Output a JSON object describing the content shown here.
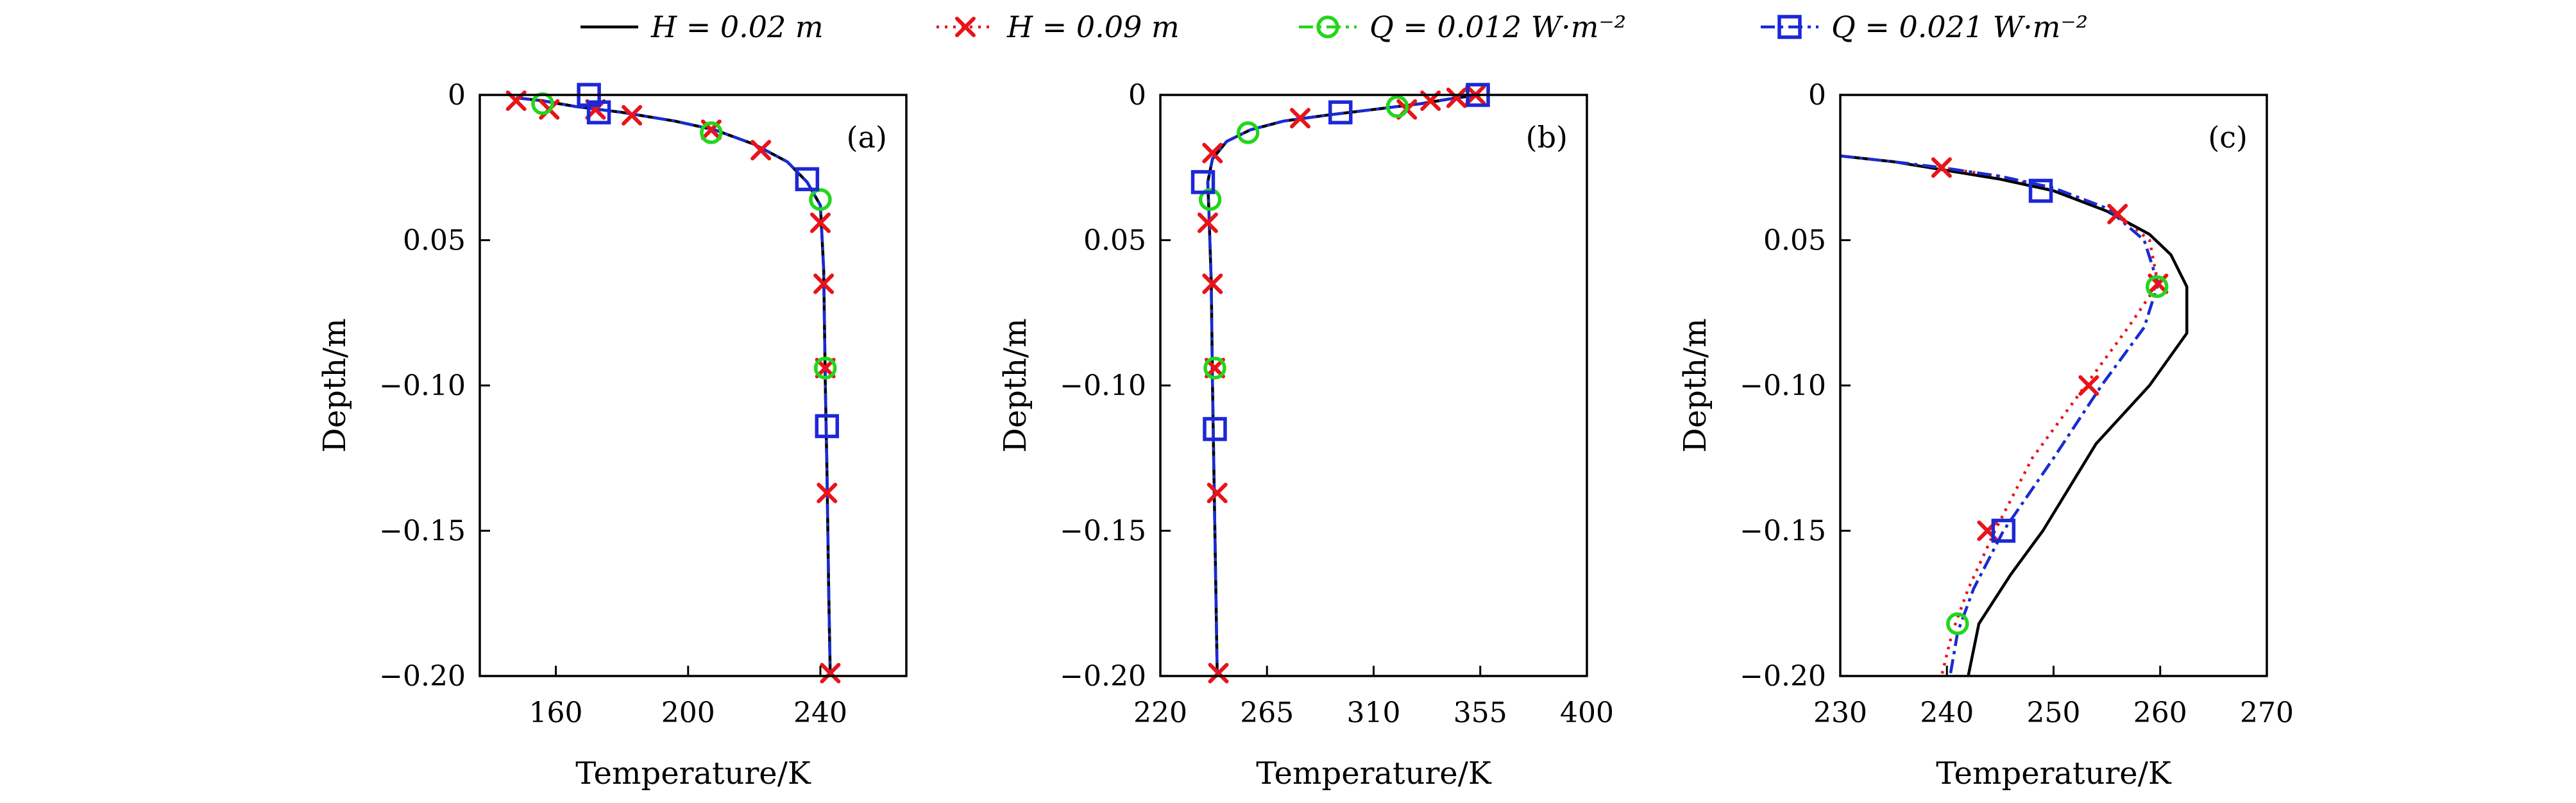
{
  "legend": [
    {
      "label": "H = 0.02 m",
      "color": "#000000",
      "dash": "solid",
      "marker": "none"
    },
    {
      "label": "H = 0.09 m",
      "color": "#e8141a",
      "dash": "dotted",
      "marker": "x"
    },
    {
      "label": "Q = 0.012 W·m⁻²",
      "color": "#22d61c",
      "dash": "dashdot",
      "marker": "circle"
    },
    {
      "label": "Q = 0.021 W·m⁻²",
      "color": "#1c28d6",
      "dash": "dashdot",
      "marker": "square"
    }
  ],
  "chart_data": [
    {
      "type": "line",
      "panel_label": "(a)",
      "xlabel": "Temperature/K",
      "ylabel": "Depth/m",
      "xlim": [
        137,
        266
      ],
      "ylim": [
        -0.2,
        0
      ],
      "xticks": [
        160,
        200,
        240
      ],
      "xtick_labels": [
        "160",
        "200",
        "240"
      ],
      "yticks": [
        0,
        -0.05,
        -0.1,
        -0.15,
        -0.2
      ],
      "ytick_labels": [
        "0",
        "0.05",
        "−0.10",
        "−0.15",
        "−0.20"
      ],
      "grid": false,
      "series": [
        {
          "name": "H = 0.02 m",
          "x": [
            148,
            156,
            166,
            180,
            196,
            208,
            220,
            230,
            236,
            240,
            241,
            241.5,
            242,
            242.5,
            243
          ],
          "y": [
            -0.001,
            -0.002,
            -0.004,
            -0.006,
            -0.009,
            -0.012,
            -0.017,
            -0.023,
            -0.03,
            -0.038,
            -0.06,
            -0.1,
            -0.13,
            -0.17,
            -0.2
          ]
        },
        {
          "name": "H = 0.09 m",
          "x": [
            148,
            156,
            166,
            180,
            196,
            208,
            220,
            230,
            236,
            240,
            241,
            241.5,
            242,
            242.5,
            243
          ],
          "y": [
            -0.001,
            -0.002,
            -0.004,
            -0.006,
            -0.009,
            -0.012,
            -0.017,
            -0.023,
            -0.03,
            -0.038,
            -0.06,
            -0.1,
            -0.13,
            -0.17,
            -0.2
          ],
          "markers": {
            "x": [
              148,
              158,
              172,
              183,
              207,
              222,
              240,
              241,
              241.5,
              242,
              243
            ],
            "y": [
              -0.002,
              -0.005,
              -0.005,
              -0.007,
              -0.012,
              -0.019,
              -0.044,
              -0.065,
              -0.094,
              -0.137,
              -0.199
            ]
          }
        },
        {
          "name": "Q = 0.012 W·m⁻²",
          "x": [
            148,
            156,
            166,
            180,
            196,
            208,
            220,
            230,
            236,
            240,
            241,
            241.5,
            242,
            242.5,
            243
          ],
          "y": [
            -0.001,
            -0.002,
            -0.004,
            -0.006,
            -0.009,
            -0.012,
            -0.017,
            -0.023,
            -0.03,
            -0.038,
            -0.06,
            -0.1,
            -0.13,
            -0.17,
            -0.2
          ],
          "markers": {
            "x": [
              156,
              207,
              240,
              241.5
            ],
            "y": [
              -0.003,
              -0.013,
              -0.036,
              -0.094
            ]
          }
        },
        {
          "name": "Q = 0.021 W·m⁻²",
          "x": [
            148,
            156,
            166,
            180,
            196,
            208,
            220,
            230,
            236,
            240,
            241,
            241.5,
            242,
            242.5,
            243
          ],
          "y": [
            -0.001,
            -0.002,
            -0.004,
            -0.006,
            -0.009,
            -0.012,
            -0.017,
            -0.023,
            -0.03,
            -0.038,
            -0.06,
            -0.1,
            -0.13,
            -0.17,
            -0.2
          ],
          "markers": {
            "x": [
              170,
              173,
              236,
              242
            ],
            "y": [
              0,
              -0.006,
              -0.029,
              -0.114
            ]
          }
        }
      ]
    },
    {
      "type": "line",
      "panel_label": "(b)",
      "xlabel": "Temperature/K",
      "ylabel": "Depth/m",
      "xlim": [
        220,
        400
      ],
      "ylim": [
        -0.2,
        0
      ],
      "xticks": [
        220,
        265,
        310,
        355,
        400
      ],
      "xtick_labels": [
        "220",
        "265",
        "310",
        "355",
        "400"
      ],
      "yticks": [
        0,
        -0.05,
        -0.1,
        -0.15,
        -0.2
      ],
      "ytick_labels": [
        "0",
        "0.05",
        "−0.10",
        "−0.15",
        "−0.20"
      ],
      "grid": false,
      "series": [
        {
          "name": "H = 0.02 m",
          "x": [
            355,
            345,
            330,
            310,
            290,
            272,
            258,
            248,
            242,
            240,
            240.5,
            241.5,
            242,
            243,
            244
          ],
          "y": [
            0,
            -0.001,
            -0.003,
            -0.005,
            -0.007,
            -0.009,
            -0.012,
            -0.016,
            -0.022,
            -0.03,
            -0.04,
            -0.065,
            -0.1,
            -0.15,
            -0.2
          ]
        },
        {
          "name": "H = 0.09 m",
          "x": [
            355,
            345,
            330,
            310,
            290,
            272,
            258,
            248,
            242,
            240,
            240.5,
            241.5,
            242,
            243,
            244
          ],
          "y": [
            0,
            -0.001,
            -0.003,
            -0.005,
            -0.007,
            -0.009,
            -0.012,
            -0.016,
            -0.022,
            -0.03,
            -0.04,
            -0.065,
            -0.1,
            -0.15,
            -0.2
          ],
          "markers": {
            "x": [
              353,
              345,
              334,
              324,
              279,
              242,
              240,
              242,
              243,
              244,
              244.5
            ],
            "y": [
              0,
              -0.001,
              -0.002,
              -0.005,
              -0.008,
              -0.02,
              -0.044,
              -0.065,
              -0.094,
              -0.137,
              -0.199
            ]
          }
        },
        {
          "name": "Q = 0.012 W·m⁻²",
          "x": [
            355,
            345,
            330,
            310,
            290,
            272,
            258,
            248,
            242,
            240,
            240.5,
            241.5,
            242,
            243,
            244
          ],
          "y": [
            0,
            -0.001,
            -0.003,
            -0.005,
            -0.007,
            -0.009,
            -0.012,
            -0.016,
            -0.022,
            -0.03,
            -0.04,
            -0.065,
            -0.1,
            -0.15,
            -0.2
          ],
          "markers": {
            "x": [
              320,
              257,
              241,
              243
            ],
            "y": [
              -0.004,
              -0.013,
              -0.036,
              -0.094
            ]
          }
        },
        {
          "name": "Q = 0.021 W·m⁻²",
          "x": [
            355,
            345,
            330,
            310,
            290,
            272,
            258,
            248,
            242,
            240,
            240.5,
            241.5,
            242,
            243,
            244
          ],
          "y": [
            0,
            -0.001,
            -0.003,
            -0.005,
            -0.007,
            -0.009,
            -0.012,
            -0.016,
            -0.022,
            -0.03,
            -0.04,
            -0.065,
            -0.1,
            -0.15,
            -0.2
          ],
          "markers": {
            "x": [
              354,
              296,
              238,
              243
            ],
            "y": [
              0,
              -0.006,
              -0.03,
              -0.115
            ]
          }
        }
      ]
    },
    {
      "type": "line",
      "panel_label": "(c)",
      "xlabel": "Temperature/K",
      "ylabel": "Depth/m",
      "xlim": [
        230,
        270
      ],
      "ylim": [
        -0.2,
        0
      ],
      "xticks": [
        230,
        240,
        250,
        260,
        270
      ],
      "xtick_labels": [
        "230",
        "240",
        "250",
        "260",
        "270"
      ],
      "yticks": [
        0,
        -0.05,
        -0.1,
        -0.15,
        -0.2
      ],
      "ytick_labels": [
        "0",
        "0.05",
        "−0.10",
        "−0.15",
        "−0.20"
      ],
      "grid": false,
      "series": [
        {
          "name": "H = 0.02 m",
          "x": [
            230,
            235,
            240,
            245,
            250,
            255,
            259,
            261,
            262.5,
            262.5,
            259,
            254,
            249,
            246,
            243,
            242
          ],
          "y": [
            -0.021,
            -0.023,
            -0.026,
            -0.029,
            -0.033,
            -0.04,
            -0.048,
            -0.055,
            -0.066,
            -0.082,
            -0.1,
            -0.12,
            -0.15,
            -0.165,
            -0.182,
            -0.2
          ]
        },
        {
          "name": "H = 0.09 m",
          "x": [
            230,
            235,
            239.5,
            245,
            250,
            256,
            259,
            259.8,
            257,
            253,
            248,
            244.5,
            242,
            240.5,
            239.5
          ],
          "y": [
            -0.021,
            -0.023,
            -0.025,
            -0.028,
            -0.033,
            -0.041,
            -0.05,
            -0.065,
            -0.08,
            -0.1,
            -0.125,
            -0.15,
            -0.17,
            -0.185,
            -0.2
          ],
          "markers": {
            "x": [
              239.5,
              256,
              259.8,
              253.3,
              243.8
            ],
            "y": [
              -0.025,
              -0.041,
              -0.065,
              -0.1,
              -0.15
            ]
          }
        },
        {
          "name": "Q = 0.012 W·m⁻²",
          "x": [
            230,
            235,
            239.5,
            245,
            250,
            255,
            258.5,
            259.8,
            258.5,
            254.5,
            250,
            245.3,
            242.5,
            241,
            240.3
          ],
          "y": [
            -0.021,
            -0.023,
            -0.025,
            -0.028,
            -0.032,
            -0.039,
            -0.05,
            -0.065,
            -0.08,
            -0.1,
            -0.125,
            -0.15,
            -0.17,
            -0.185,
            -0.2
          ],
          "markers": {
            "x": [
              259.7,
              241
            ],
            "y": [
              -0.066,
              -0.182
            ]
          }
        },
        {
          "name": "Q = 0.021 W·m⁻²",
          "x": [
            230,
            235,
            239.5,
            245,
            250,
            255,
            258.5,
            259.8,
            258.5,
            254.5,
            250,
            245.3,
            242.5,
            241,
            240.3
          ],
          "y": [
            -0.021,
            -0.023,
            -0.025,
            -0.028,
            -0.032,
            -0.039,
            -0.05,
            -0.065,
            -0.08,
            -0.1,
            -0.125,
            -0.15,
            -0.17,
            -0.185,
            -0.2
          ],
          "markers": {
            "x": [
              248.8,
              245.3
            ],
            "y": [
              -0.033,
              -0.15
            ]
          }
        }
      ]
    }
  ]
}
